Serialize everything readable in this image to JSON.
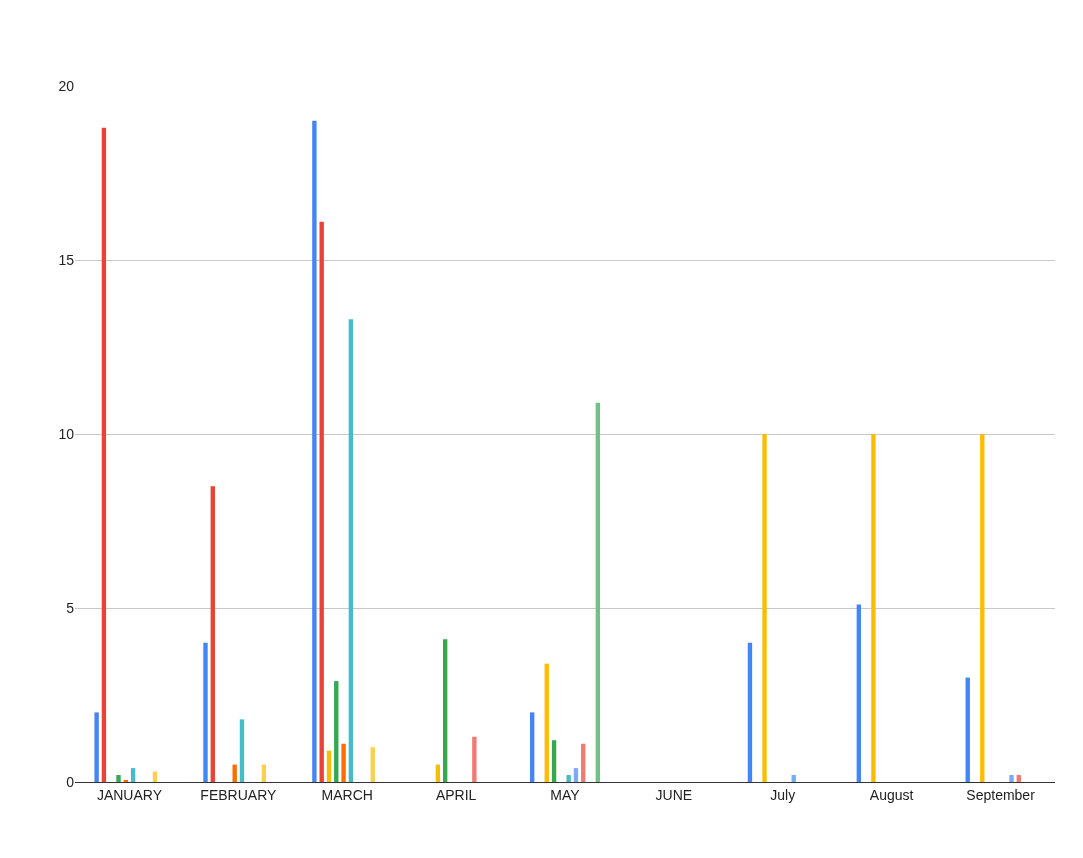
{
  "chart_data": {
    "type": "bar",
    "categories": [
      "JANUARY",
      "FEBRUARY",
      "MARCH",
      "APRIL",
      "MAY",
      "JUNE",
      "July",
      "August",
      "September"
    ],
    "series": [
      {
        "color": "#4285f4",
        "values": [
          2,
          4,
          19,
          null,
          2,
          null,
          4,
          5.1,
          3
        ]
      },
      {
        "color": "#ea4335",
        "values": [
          18.8,
          8.5,
          16.1,
          null,
          null,
          null,
          null,
          null,
          null
        ]
      },
      {
        "color": "#fbbc04",
        "values": [
          null,
          null,
          0.9,
          0.5,
          3.4,
          null,
          10,
          10,
          10
        ]
      },
      {
        "color": "#34a853",
        "values": [
          0.2,
          null,
          2.9,
          4.1,
          1.2,
          null,
          null,
          null,
          null
        ]
      },
      {
        "color": "#ff6d01",
        "values": [
          0.05,
          0.5,
          1.1,
          null,
          null,
          null,
          null,
          null,
          null
        ]
      },
      {
        "color": "#46bdc6",
        "values": [
          0.4,
          1.8,
          13.3,
          null,
          0.2,
          null,
          null,
          null,
          null
        ]
      },
      {
        "color": "#7baaf7",
        "values": [
          null,
          null,
          null,
          null,
          0.4,
          null,
          0.2,
          null,
          0.2
        ]
      },
      {
        "color": "#f07b72",
        "values": [
          null,
          null,
          null,
          1.3,
          1.1,
          null,
          null,
          null,
          0.2
        ]
      },
      {
        "color": "#fcd04f",
        "values": [
          0.3,
          0.5,
          1,
          null,
          null,
          null,
          null,
          null,
          null
        ]
      },
      {
        "color": "#71c287",
        "values": [
          null,
          null,
          null,
          null,
          10.9,
          null,
          null,
          null,
          null
        ]
      }
    ],
    "ylim": [
      0,
      20
    ],
    "yticks": [
      0,
      5,
      10,
      15,
      20
    ],
    "grid": "y"
  }
}
